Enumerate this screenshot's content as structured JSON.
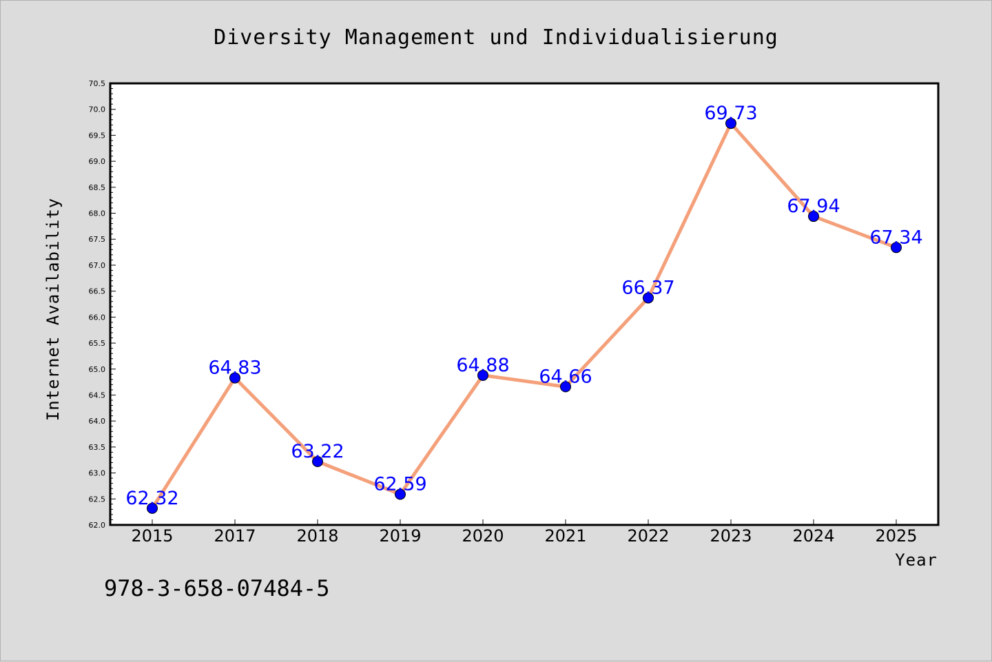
{
  "chart_data": {
    "type": "line",
    "title": "Diversity Management und Individualisierung",
    "xlabel": "Year",
    "ylabel": "Internet Availability",
    "categories": [
      "2015",
      "2017",
      "2018",
      "2019",
      "2020",
      "2021",
      "2022",
      "2023",
      "2024",
      "2025"
    ],
    "series": [
      {
        "values": [
          62.32,
          64.83,
          63.22,
          62.59,
          64.88,
          64.66,
          66.37,
          69.73,
          67.94,
          67.34
        ],
        "labels": [
          "62.32",
          "64.83",
          "63.22",
          "62.59",
          "64.88",
          "64.66",
          "66.37",
          "69.73",
          "67.94",
          "67.34"
        ],
        "line_color": "#f4a07a",
        "marker_color": "#0000ff",
        "label_color": "#0000ff"
      }
    ],
    "ylim": [
      62.0,
      70.5
    ],
    "yticks": [
      "62.0",
      "62.5",
      "63.0",
      "63.5",
      "64.0",
      "64.5",
      "65.0",
      "65.5",
      "66.0",
      "66.5",
      "67.0",
      "67.5",
      "68.0",
      "68.5",
      "69.0",
      "69.5",
      "70.0",
      "70.5"
    ],
    "grid": false,
    "legend": "none"
  },
  "footer": {
    "isbn": "978-3-658-07484-5"
  },
  "colors": {
    "background": "#dcdcdc",
    "plot_background": "#ffffff"
  }
}
